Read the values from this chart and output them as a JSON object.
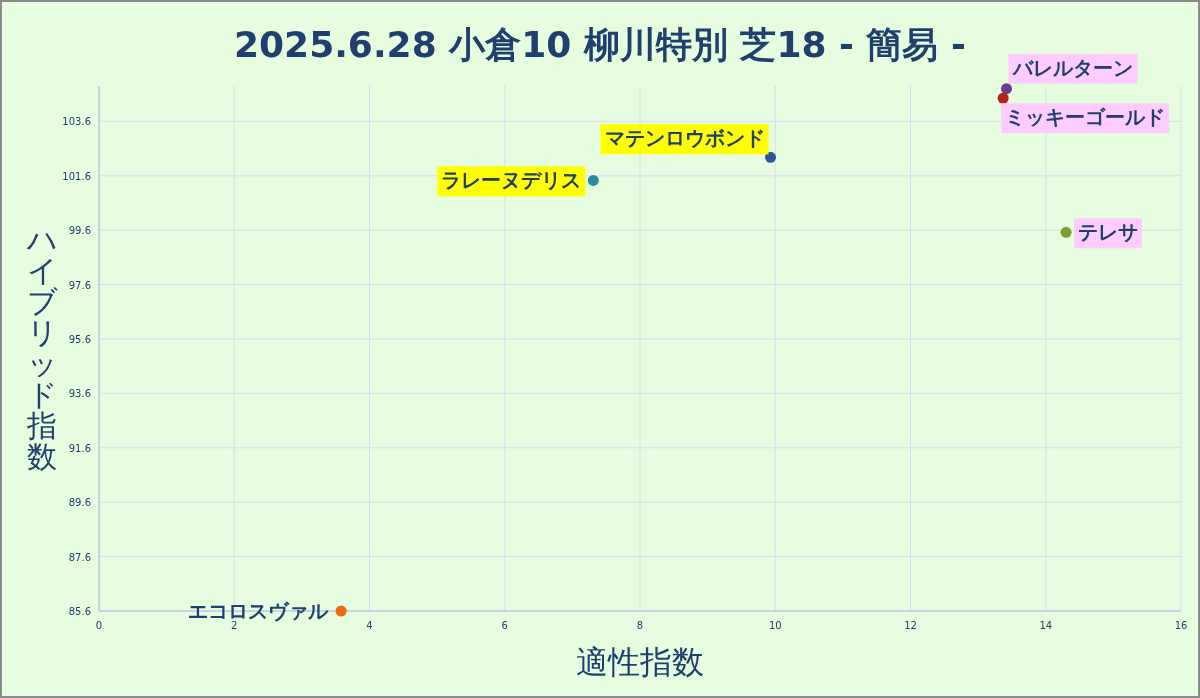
{
  "chart_data": {
    "type": "scatter",
    "title": "2025.6.28 小倉10 柳川特別 芝18 - 簡易 -",
    "xlabel": "適性指数",
    "ylabel": "ハイブリッド指数",
    "xlim": [
      0,
      16
    ],
    "xticks": [
      0,
      2,
      4,
      6,
      8,
      10,
      12,
      14,
      16
    ],
    "ylim": [
      85.6,
      104.9
    ],
    "yticks": [
      85.6,
      87.6,
      89.6,
      91.6,
      93.6,
      95.6,
      97.6,
      99.6,
      101.6,
      103.6
    ],
    "grid": true,
    "legend": false,
    "marker": "circle",
    "series": [
      {
        "name": "バレルターン",
        "color": "#6a3d8f",
        "x": [
          13.42
        ],
        "values": [
          104.8
        ]
      },
      {
        "name": "ミッキーゴールド",
        "color": "#b02418",
        "x": [
          13.37
        ],
        "values": [
          104.45
        ]
      },
      {
        "name": "マテンロウボンド",
        "color": "#2e5597",
        "x": [
          9.93
        ],
        "values": [
          102.28
        ]
      },
      {
        "name": "ラレーヌデリス",
        "color": "#2a8aa0",
        "x": [
          7.31
        ],
        "values": [
          101.43
        ]
      },
      {
        "name": "テレサ",
        "color": "#78a030",
        "x": [
          14.3
        ],
        "values": [
          99.52
        ]
      },
      {
        "name": "エコロスヴァル",
        "color": "#f06a10",
        "x": [
          3.58
        ],
        "values": [
          85.6
        ]
      }
    ]
  }
}
